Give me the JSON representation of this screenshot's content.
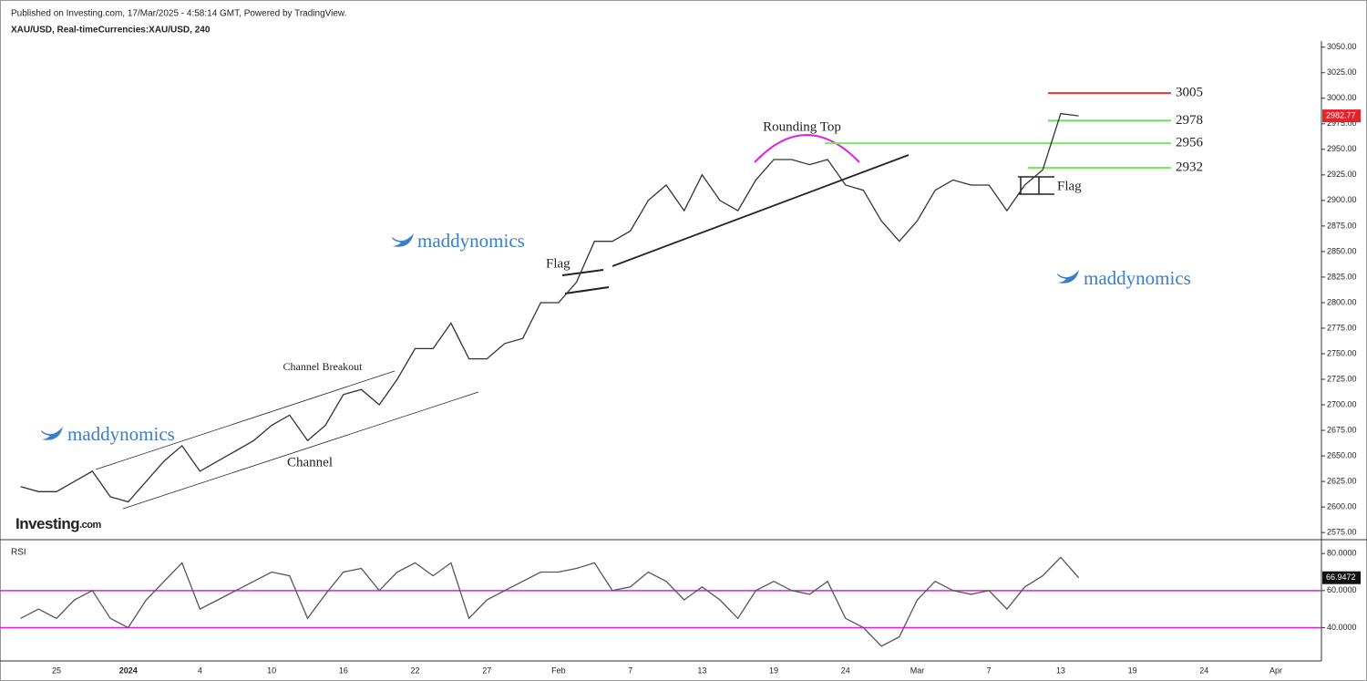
{
  "header": {
    "published": "Published on Investing.com, 17/Mar/2025 - 4:58:14 GMT, Powered by TradingView.",
    "symbol": "XAU/USD, Real-timeCurrencies:XAU/USD, 240"
  },
  "logo": {
    "name": "Investing",
    "suffix": ".com"
  },
  "annotations": {
    "rounding_top": "Rounding Top",
    "flag_1": "Flag",
    "flag_2": "Flag",
    "channel_breakout": "Channel Breakout",
    "channel": "Channel",
    "watermark_1": "maddynomics",
    "watermark_2": "maddynomics",
    "watermark_3": "maddynomics"
  },
  "chart_data": [
    {
      "type": "line",
      "title": null,
      "series": [
        {
          "name": null,
          "color": "#333333",
          "values": [
            2620,
            2615,
            2615,
            2625,
            2635,
            2610,
            2605,
            2625,
            2645,
            2660,
            2635,
            2645,
            2655,
            2665,
            2680,
            2690,
            2665,
            2680,
            2710,
            2715,
            2700,
            2725,
            2755,
            2755,
            2780,
            2745,
            2745,
            2760,
            2765,
            2800,
            2800,
            2820,
            2860,
            2860,
            2870,
            2900,
            2915,
            2890,
            2925,
            2900,
            2890,
            2920,
            2940,
            2940,
            2935,
            2940,
            2915,
            2910,
            2880,
            2860,
            2880,
            2910,
            2920,
            2915,
            2915,
            2890,
            2915,
            2930,
            2985,
            2982.77,
            null,
            null,
            null,
            null,
            null,
            null,
            null,
            null,
            null,
            null,
            null
          ]
        }
      ],
      "last_value_color": "#e8222a",
      "levels": [
        {
          "value": 3005,
          "color": "#e53935"
        },
        {
          "value": 2978,
          "color": "#66dd66"
        },
        {
          "value": 2956,
          "color": "#77ee55"
        },
        {
          "value": 2932,
          "color": "#77ee55"
        }
      ],
      "ylim": [
        2568,
        3056
      ],
      "yticks": [
        {
          "value": 2575,
          "label": "2575.00"
        },
        {
          "value": 2600,
          "label": "2600.00"
        },
        {
          "value": 2625,
          "label": "2625.00"
        },
        {
          "value": 2650,
          "label": "2650.00"
        },
        {
          "value": 2675,
          "label": "2675.00"
        },
        {
          "value": 2700,
          "label": "2700.00"
        },
        {
          "value": 2725,
          "label": "2725.00"
        },
        {
          "value": 2750,
          "label": "2750.00"
        },
        {
          "value": 2775,
          "label": "2775.00"
        },
        {
          "value": 2800,
          "label": "2800.00"
        },
        {
          "value": 2825,
          "label": "2825.00"
        },
        {
          "value": 2850,
          "label": "2850.00"
        },
        {
          "value": 2875,
          "label": "2875.00"
        },
        {
          "value": 2900,
          "label": "2900.00"
        },
        {
          "value": 2925,
          "label": "2925.00"
        },
        {
          "value": 2950,
          "label": "2950.00"
        },
        {
          "value": 2975,
          "label": "2975.00"
        },
        {
          "value": 3000,
          "label": "3000.00"
        },
        {
          "value": 3025,
          "label": "3025.00"
        },
        {
          "value": 3050,
          "label": "3050.00"
        }
      ]
    },
    {
      "type": "line",
      "title": "RSI",
      "categories": [
        null,
        null,
        "25",
        null,
        null,
        null,
        "2024",
        null,
        null,
        null,
        "4",
        null,
        null,
        null,
        "10",
        null,
        null,
        null,
        "16",
        null,
        null,
        null,
        "22",
        null,
        null,
        null,
        "27",
        null,
        null,
        null,
        "Feb",
        null,
        null,
        null,
        "7",
        null,
        null,
        null,
        "13",
        null,
        null,
        null,
        "19",
        null,
        null,
        null,
        "24",
        null,
        null,
        null,
        "Mar",
        null,
        null,
        null,
        "7",
        null,
        null,
        null,
        "13",
        null,
        null,
        null,
        "19",
        null,
        null,
        null,
        "24",
        null,
        null,
        null,
        "Apr"
      ],
      "series": [
        {
          "name": null,
          "color": "#555555",
          "values": [
            45,
            50,
            45,
            55,
            60,
            45,
            40,
            55,
            65,
            75,
            50,
            55,
            60,
            65,
            70,
            68,
            45,
            58,
            70,
            72,
            60,
            70,
            75,
            68,
            75,
            45,
            55,
            60,
            65,
            70,
            70,
            72,
            75,
            60,
            62,
            70,
            65,
            55,
            62,
            55,
            45,
            60,
            65,
            60,
            58,
            65,
            45,
            40,
            30,
            35,
            55,
            65,
            60,
            58,
            60,
            50,
            62,
            68,
            78,
            66.9472,
            null,
            null,
            null,
            null,
            null,
            null,
            null,
            null,
            null,
            null,
            null
          ]
        }
      ],
      "last_value_color": "#111111",
      "band_levels": [
        60,
        40
      ],
      "band_color": "#e020e0",
      "ylim": [
        22,
        87
      ],
      "yticks": [
        {
          "value": 40,
          "label": "40.0000"
        },
        {
          "value": 60,
          "label": "60.0000"
        },
        {
          "value": 80,
          "label": "80.0000"
        }
      ]
    }
  ]
}
